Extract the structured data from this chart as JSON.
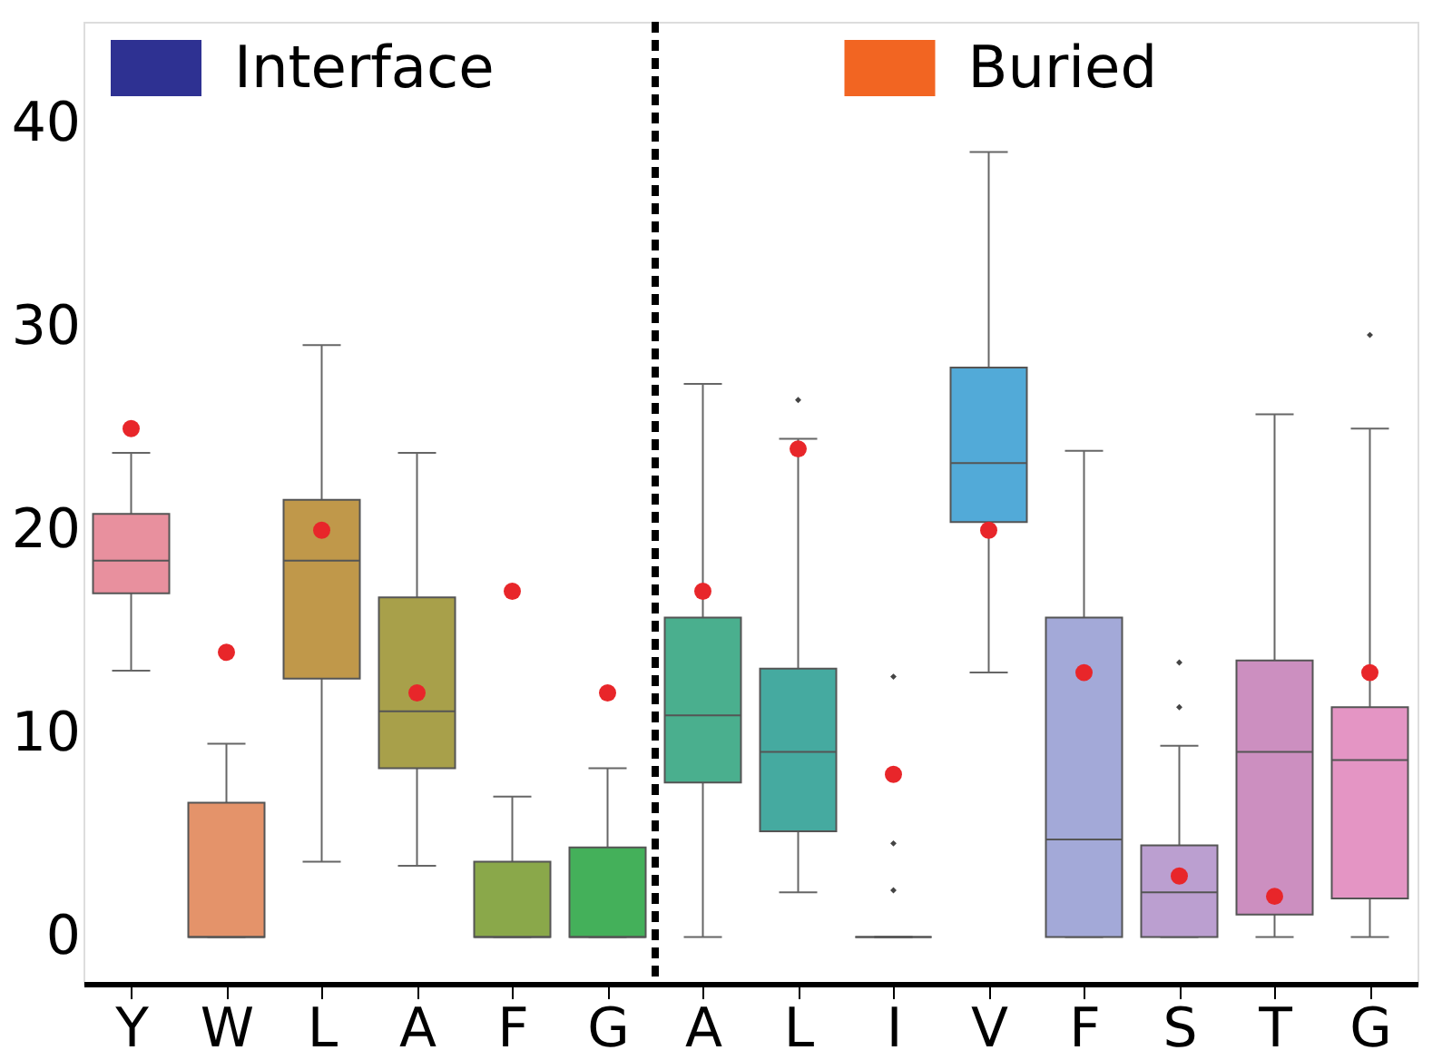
{
  "chart_data": {
    "type": "box",
    "categories": [
      "Y",
      "W",
      "L",
      "A",
      "F",
      "G",
      "A",
      "L",
      "I",
      "V",
      "F",
      "S",
      "T",
      "G"
    ],
    "ylim": [
      -2.3,
      45
    ],
    "yticks": [
      0,
      10,
      20,
      30,
      40
    ],
    "grid": false,
    "series": [
      {
        "colors": [
          "#e8909e",
          "#e4936a",
          "#c0984a",
          "#a8a04a",
          "#8aa84a",
          "#44b05a",
          null,
          null,
          null,
          null,
          null,
          null,
          null,
          null
        ],
        "boxes": [
          {
            "low": 13.1,
            "q1": 16.9,
            "median": 18.5,
            "q3": 20.8,
            "high": 23.8
          },
          {
            "low": 0,
            "q1": 0,
            "median": 0,
            "q3": 6.6,
            "high": 9.5
          },
          {
            "low": 3.7,
            "q1": 12.7,
            "median": 18.5,
            "q3": 21.5,
            "high": 29.1
          },
          {
            "low": 3.5,
            "q1": 8.3,
            "median": 11.1,
            "q3": 16.7,
            "high": 23.8
          },
          {
            "low": 0,
            "q1": 0,
            "median": 0,
            "q3": 3.7,
            "high": 6.9
          },
          {
            "low": 0,
            "q1": 0,
            "median": 0,
            "q3": 4.4,
            "high": 8.3
          },
          null,
          null,
          null,
          null,
          null,
          null,
          null,
          null
        ]
      },
      {
        "colors": [
          null,
          null,
          null,
          null,
          null,
          null,
          "#4aaf8e",
          "#45aaa0",
          "#555555",
          "#52aad8",
          "#a3a9d8",
          "#bb9fd0",
          "#cc8fc0",
          "#e495c4"
        ],
        "boxes": [
          null,
          null,
          null,
          null,
          null,
          null,
          {
            "low": 0,
            "q1": 7.6,
            "median": 10.9,
            "q3": 15.7,
            "high": 27.2
          },
          {
            "low": 2.2,
            "q1": 5.2,
            "median": 9.1,
            "q3": 13.2,
            "high": 24.5,
            "outliers": [
              26.4
            ]
          },
          {
            "low": 0,
            "q1": 0,
            "median": 0,
            "q3": 0,
            "high": 0,
            "outliers": [
              12.8,
              4.6,
              2.3
            ]
          },
          {
            "low": 13.0,
            "q1": 20.4,
            "median": 23.3,
            "q3": 28.0,
            "high": 38.6
          },
          {
            "low": 0,
            "q1": 0,
            "median": 4.8,
            "q3": 15.7,
            "high": 23.9
          },
          {
            "low": 0,
            "q1": 0,
            "median": 2.2,
            "q3": 4.5,
            "high": 9.4,
            "outliers": [
              13.5,
              11.3
            ]
          },
          {
            "low": 0,
            "q1": 1.1,
            "median": 9.1,
            "q3": 13.6,
            "high": 25.7
          },
          {
            "low": 0,
            "q1": 1.9,
            "median": 8.7,
            "q3": 11.3,
            "high": 25.0,
            "outliers": [
              29.6
            ]
          }
        ]
      },
      {
        "type": "scatter",
        "color": "#e8262a",
        "marker": "circle",
        "values": [
          25,
          14,
          20,
          12,
          17,
          12,
          17,
          24,
          8,
          20,
          13,
          3,
          2,
          13
        ]
      }
    ],
    "annotations": [
      "Interface",
      "Buried"
    ]
  }
}
